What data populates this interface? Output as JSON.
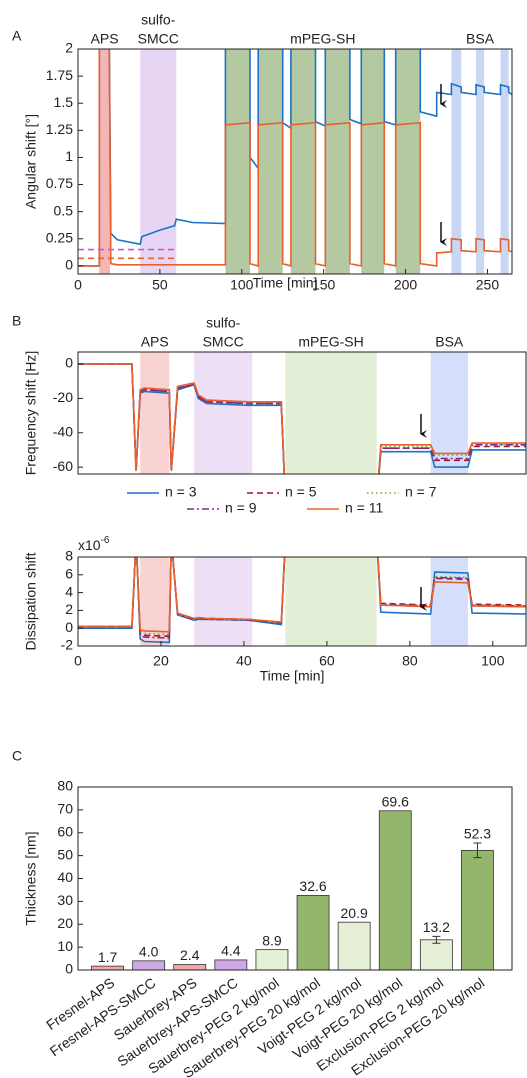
{
  "chart_data": [
    {
      "type": "line",
      "panel_label": "A",
      "xlabel": "Time [min]",
      "ylabel": "Angular shift [°]",
      "xlim": [
        0,
        265
      ],
      "ylim": [
        -0.075,
        2
      ],
      "xticks": [
        0,
        50,
        100,
        150,
        200,
        250
      ],
      "yticks": [
        0,
        0.25,
        0.5,
        0.75,
        1,
        1.25,
        1.5,
        1.75,
        2
      ],
      "regions": [
        {
          "label": [
            "APS"
          ],
          "color": "#f5b5b5",
          "spans": [
            [
              13,
              19.5
            ]
          ]
        },
        {
          "label": [
            "sulfo-",
            "SMCC"
          ],
          "color": "#e6d5f3",
          "spans": [
            [
              38,
              60
            ]
          ]
        },
        {
          "label": [
            "mPEG-SH"
          ],
          "color": "#b4c8a2",
          "spans": [
            [
              90,
              105
            ],
            [
              110,
              125
            ],
            [
              130,
              145
            ],
            [
              151,
              166
            ],
            [
              173,
              187
            ],
            [
              194,
              209
            ]
          ]
        },
        {
          "label": [
            "BSA"
          ],
          "color": "#c9d6f4",
          "spans": [
            [
              228,
              234
            ],
            [
              243,
              248
            ],
            [
              258,
              263
            ]
          ]
        }
      ],
      "x": [
        0,
        13,
        13,
        19,
        20,
        24,
        38,
        39,
        50,
        59,
        60,
        70,
        90,
        90,
        105,
        105,
        110,
        110,
        125,
        125,
        130,
        130,
        145,
        145,
        151,
        151,
        166,
        166,
        173,
        173,
        187,
        187,
        194,
        194,
        209,
        209,
        219,
        219,
        228,
        228,
        234,
        234,
        243,
        243,
        248,
        248,
        258,
        258,
        263,
        263,
        265
      ],
      "series": [
        {
          "color": "#1a73c9",
          "values": [
            0,
            0,
            2.3,
            2.3,
            0.3,
            0.24,
            0.2,
            0.27,
            0.33,
            0.37,
            0.43,
            0.4,
            0.39,
            2.3,
            2.3,
            1.0,
            0.9,
            2.3,
            2.3,
            1.32,
            1.27,
            2.3,
            2.3,
            1.33,
            1.29,
            2.3,
            2.3,
            1.35,
            1.31,
            2.3,
            2.3,
            1.33,
            1.3,
            2.3,
            2.3,
            1.42,
            1.38,
            1.6,
            1.58,
            1.68,
            1.65,
            1.6,
            1.58,
            1.67,
            1.65,
            1.6,
            1.58,
            1.67,
            1.65,
            1.6,
            1.58
          ]
        },
        {
          "color": "#e8602c",
          "values": [
            0,
            0,
            2.3,
            2.3,
            0.02,
            0.01,
            0.01,
            0.01,
            0.01,
            0.01,
            0.01,
            0.01,
            0.01,
            1.3,
            1.32,
            0.02,
            0.0,
            1.3,
            1.32,
            0.02,
            0.0,
            1.3,
            1.32,
            0.02,
            0.0,
            1.3,
            1.32,
            0.02,
            0.0,
            1.3,
            1.32,
            0.02,
            0.0,
            1.3,
            1.32,
            0.02,
            0.0,
            0.12,
            0.13,
            0.25,
            0.24,
            0.14,
            0.13,
            0.25,
            0.24,
            0.14,
            0.13,
            0.25,
            0.24,
            0.14,
            0.13
          ]
        },
        {
          "color": "#cc55e0",
          "dash": "dashed",
          "x": [
            0,
            60
          ],
          "values": [
            0.15,
            0.15
          ]
        },
        {
          "color": "#e8602c",
          "dash": "dashed",
          "x": [
            0,
            60
          ],
          "values": [
            0.07,
            0.07
          ]
        }
      ]
    },
    {
      "type": "line",
      "panel_label": "B",
      "ylabel": "Frequency shift [Hz]",
      "xlim": [
        0,
        108
      ],
      "ylim": [
        -64,
        7
      ],
      "yticks": [
        0,
        -20,
        -40,
        -60
      ],
      "regions": [
        {
          "label": [
            "APS"
          ],
          "color": "#f9d3d3",
          "spans": [
            [
              15,
              22
            ]
          ]
        },
        {
          "label": [
            "sulfo-",
            "SMCC"
          ],
          "color": "#ecdff6",
          "spans": [
            [
              28,
              42
            ]
          ]
        },
        {
          "label": [
            "mPEG-SH"
          ],
          "color": "#e2eed5",
          "spans": [
            [
              50,
              72
            ]
          ]
        },
        {
          "label": [
            "BSA"
          ],
          "color": "#d5defa",
          "spans": [
            [
              85,
              94
            ]
          ]
        }
      ],
      "x": [
        0,
        13,
        14,
        15,
        16,
        22,
        22.5,
        24,
        28,
        29,
        31,
        41,
        49,
        50,
        72,
        73,
        85,
        86,
        94,
        95,
        108
      ],
      "series": [
        {
          "name": "n = 3",
          "color": "#1a73c9",
          "values": [
            0,
            0,
            -62,
            -17,
            -16,
            -17,
            -62,
            -15,
            -12,
            -20,
            -23,
            -24,
            -24,
            -80,
            -80,
            -51,
            -51,
            -60,
            -60,
            -50,
            -50
          ]
        },
        {
          "name": "n = 5",
          "color": "#a2142f",
          "dash": "dashed",
          "values": [
            0,
            0,
            -62,
            -16,
            -15,
            -16,
            -62,
            -14,
            -12,
            -19,
            -22,
            -23,
            -23,
            -80,
            -80,
            -49,
            -49,
            -56,
            -56,
            -48,
            -48
          ]
        },
        {
          "name": "n = 7",
          "color": "#77ac30",
          "dash": "dotted",
          "values": [
            0,
            0,
            -62,
            -15,
            -14,
            -15,
            -62,
            -13,
            -11,
            -18,
            -21,
            -22,
            -22,
            -80,
            -80,
            -48,
            -48,
            -53,
            -53,
            -47,
            -47
          ]
        },
        {
          "name": "n = 9",
          "color": "#7e2f8e",
          "dash": "dashdot",
          "values": [
            0,
            0,
            -62,
            -16,
            -15,
            -16,
            -62,
            -14,
            -12,
            -19,
            -22,
            -23,
            -23,
            -80,
            -80,
            -49,
            -49,
            -55,
            -55,
            -47,
            -47
          ]
        },
        {
          "name": "n = 11",
          "color": "#e8602c",
          "values": [
            0,
            0,
            -62,
            -15,
            -14,
            -15,
            -62,
            -13,
            -11,
            -18,
            -21,
            -22,
            -22,
            -80,
            -80,
            -47,
            -47,
            -52,
            -52,
            -46,
            -46
          ]
        }
      ]
    },
    {
      "type": "line",
      "xlabel": "Time [min]",
      "ylabel": "Dissipation shift",
      "scale_label": {
        "base": "x10",
        "exponent": "-6"
      },
      "xlim": [
        0,
        108
      ],
      "ylim": [
        -2,
        8
      ],
      "xticks": [
        0,
        20,
        40,
        60,
        80,
        100
      ],
      "yticks": [
        -2,
        0,
        2,
        4,
        6,
        8
      ],
      "regions": [
        {
          "color": "#f9d3d3",
          "spans": [
            [
              15,
              22
            ]
          ]
        },
        {
          "color": "#ecdff6",
          "spans": [
            [
              28,
              42
            ]
          ]
        },
        {
          "color": "#e2eed5",
          "spans": [
            [
              50,
              72
            ]
          ]
        },
        {
          "color": "#d5defa",
          "spans": [
            [
              85,
              94
            ]
          ]
        }
      ],
      "x": [
        0,
        13,
        14,
        15,
        16,
        22,
        22.5,
        24,
        28,
        29,
        31,
        41,
        49,
        50,
        72,
        73,
        85,
        86,
        94,
        95,
        108
      ],
      "series": [
        {
          "color": "#1a73c9",
          "values": [
            0,
            0,
            10,
            -1.2,
            -1.5,
            -1.6,
            10,
            1.5,
            0.9,
            1.0,
            1.0,
            0.9,
            0.4,
            10,
            10,
            1.8,
            1.6,
            6.3,
            6.2,
            1.7,
            1.6
          ]
        },
        {
          "color": "#a2142f",
          "dash": "dashed",
          "values": [
            0.2,
            0.2,
            10,
            -0.6,
            -0.8,
            -0.9,
            10,
            1.6,
            1.0,
            1.1,
            1.1,
            1.0,
            0.6,
            10,
            10,
            2.8,
            2.6,
            5.6,
            5.5,
            2.7,
            2.6
          ]
        },
        {
          "color": "#77ac30",
          "dash": "dotted",
          "values": [
            0.2,
            0.2,
            10,
            -0.4,
            -0.6,
            -0.7,
            10,
            1.6,
            1.0,
            1.1,
            1.0,
            0.9,
            0.6,
            10,
            10,
            2.7,
            2.5,
            5.8,
            5.7,
            2.6,
            2.5
          ]
        },
        {
          "color": "#7e2f8e",
          "dash": "dashdot",
          "values": [
            0.2,
            0.2,
            10,
            -0.8,
            -1.0,
            -1.1,
            10,
            1.6,
            1.0,
            1.1,
            1.0,
            0.9,
            0.6,
            10,
            10,
            2.7,
            2.5,
            5.7,
            5.6,
            2.6,
            2.5
          ]
        },
        {
          "color": "#e8602c",
          "values": [
            0.2,
            0.2,
            10,
            -0.2,
            -0.3,
            -0.4,
            10,
            1.7,
            1.1,
            1.2,
            1.1,
            1.0,
            0.7,
            10,
            10,
            2.6,
            2.4,
            5.2,
            5.1,
            2.5,
            2.4
          ]
        }
      ]
    },
    {
      "type": "bar",
      "panel_label": "C",
      "ylabel": "Thickness [nm]",
      "ylim": [
        0,
        80
      ],
      "yticks": [
        0,
        10,
        20,
        30,
        40,
        50,
        60,
        70,
        80
      ],
      "categories": [
        "Fresnel-APS",
        "Fresnel-APS-SMCC",
        "Sauerbrey-APS",
        "Sauerbrey-APS-SMCC",
        "Sauerbrey-PEG 2 kg/mol",
        "Sauerbrey-PEG 20 kg/mol",
        "Voigt-PEG 2 kg/mol",
        "Voigt-PEG 20 kg/mol",
        "Exclusion-PEG 2 kg/mol",
        "Exclusion-PEG 20 kg/mol"
      ],
      "values": [
        1.7,
        4.0,
        2.4,
        4.4,
        8.9,
        32.6,
        20.9,
        69.6,
        13.2,
        52.3
      ],
      "value_labels": [
        "1.7",
        "4.0",
        "2.4",
        "4.4",
        "8.9",
        "32.6",
        "20.9",
        "69.6",
        "13.2",
        "52.3"
      ],
      "errors": [
        null,
        null,
        null,
        null,
        null,
        null,
        null,
        null,
        1.5,
        3.2
      ],
      "colors": [
        "#f2a6a6",
        "#cfa9e6",
        "#f2a6a6",
        "#cfa9e6",
        "#e6f0d6",
        "#93b56c",
        "#e6f0d6",
        "#93b56c",
        "#e6f0d6",
        "#93b56c"
      ]
    }
  ]
}
